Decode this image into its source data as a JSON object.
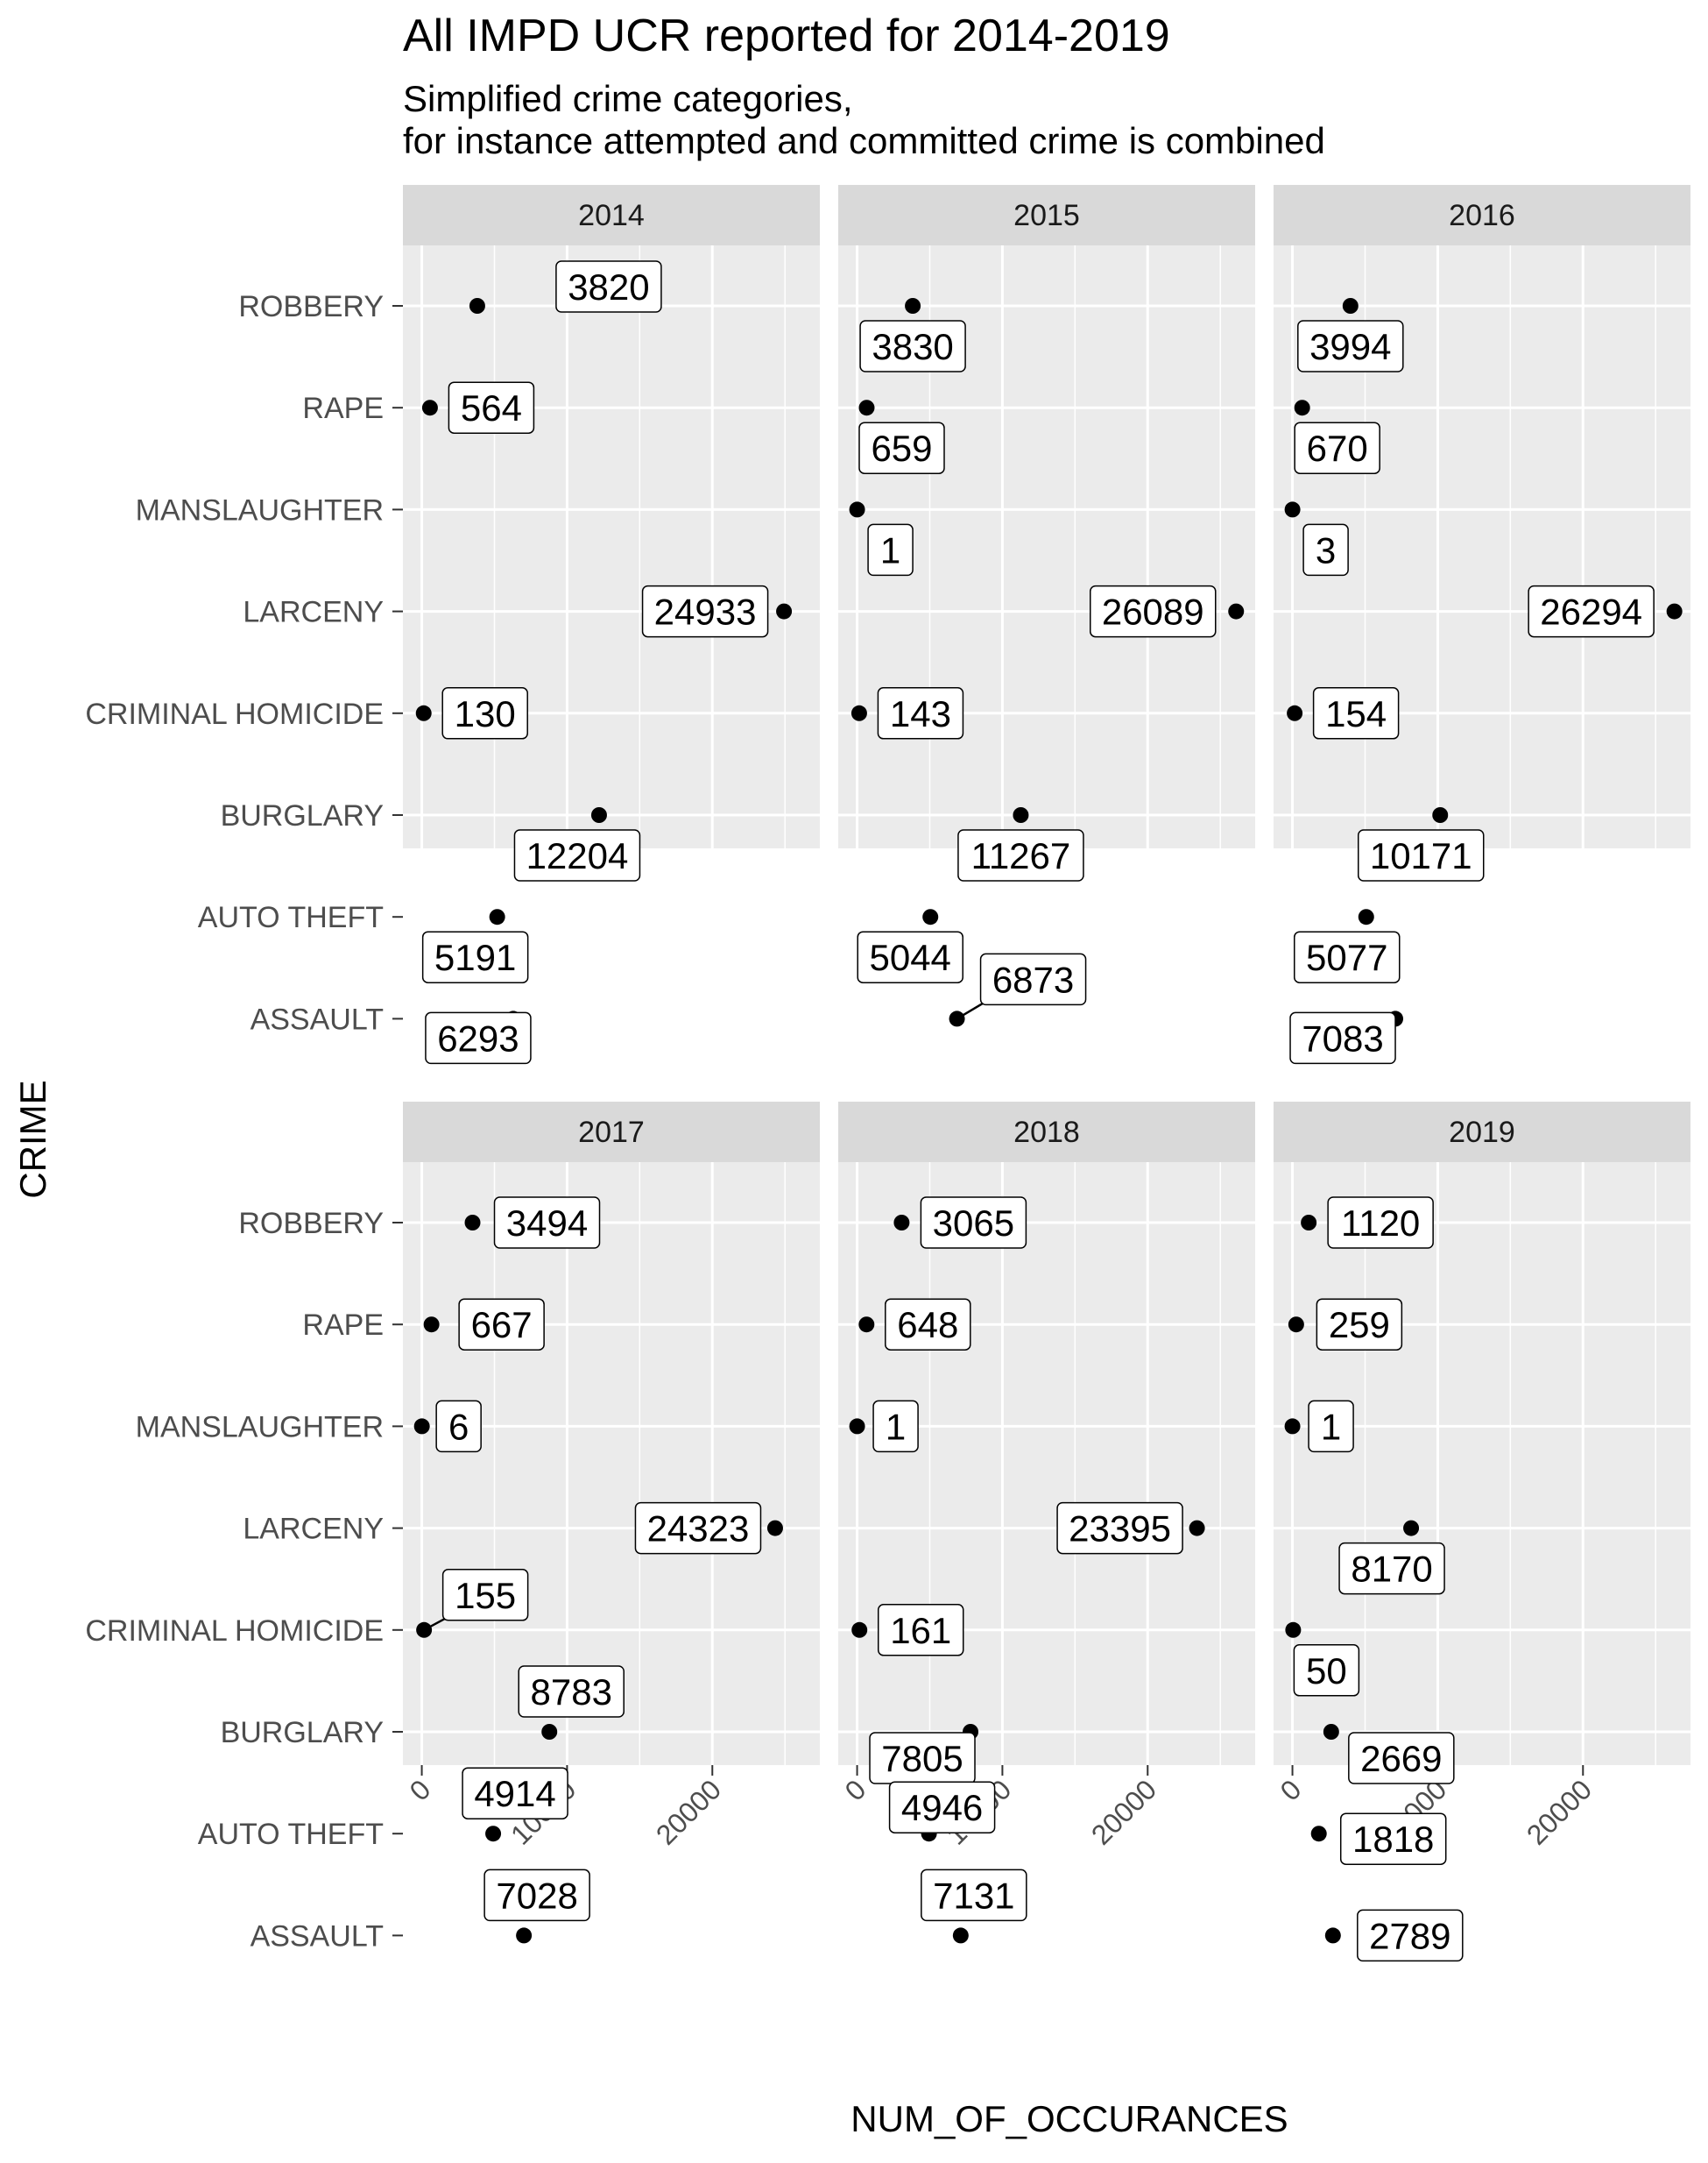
{
  "chart_data": {
    "type": "scatter",
    "title": "All IMPD UCR reported for 2014-2019",
    "subtitle_lines": [
      "Simplified crime categories,",
      "for instance attempted and committed crime is combined"
    ],
    "xlabel": "NUM_OF_OCCURANCES",
    "ylabel": "CRIME",
    "xlim": [
      -1300,
      27400
    ],
    "x_ticks": [
      0,
      10000,
      20000
    ],
    "x_tick_labels": [
      "0",
      "10000",
      "20000"
    ],
    "grid": true,
    "categories": [
      "ROBBERY",
      "RAPE",
      "MANSLAUGHTER",
      "LARCENY",
      "CRIMINAL HOMICIDE",
      "BURGLARY",
      "AUTO THEFT",
      "ASSAULT"
    ],
    "panels": [
      {
        "facet": "2014",
        "values": {
          "ROBBERY": 3820,
          "RAPE": 564,
          "LARCENY": 24933,
          "CRIMINAL HOMICIDE": 130,
          "BURGLARY": 12204,
          "AUTO THEFT": 5191,
          "ASSAULT": 6293
        }
      },
      {
        "facet": "2015",
        "values": {
          "ROBBERY": 3830,
          "RAPE": 659,
          "MANSLAUGHTER": 1,
          "LARCENY": 26089,
          "CRIMINAL HOMICIDE": 143,
          "BURGLARY": 11267,
          "AUTO THEFT": 5044,
          "ASSAULT": 6873
        }
      },
      {
        "facet": "2016",
        "values": {
          "ROBBERY": 3994,
          "RAPE": 670,
          "MANSLAUGHTER": 3,
          "LARCENY": 26294,
          "CRIMINAL HOMICIDE": 154,
          "BURGLARY": 10171,
          "AUTO THEFT": 5077,
          "ASSAULT": 7083
        }
      },
      {
        "facet": "2017",
        "values": {
          "ROBBERY": 3494,
          "RAPE": 667,
          "MANSLAUGHTER": 6,
          "LARCENY": 24323,
          "CRIMINAL HOMICIDE": 155,
          "BURGLARY": 8783,
          "AUTO THEFT": 4914,
          "ASSAULT": 7028
        }
      },
      {
        "facet": "2018",
        "values": {
          "ROBBERY": 3065,
          "RAPE": 648,
          "MANSLAUGHTER": 1,
          "LARCENY": 23395,
          "CRIMINAL HOMICIDE": 161,
          "BURGLARY": 7805,
          "AUTO THEFT": 4946,
          "ASSAULT": 7131
        }
      },
      {
        "facet": "2019",
        "values": {
          "ROBBERY": 1120,
          "RAPE": 259,
          "MANSLAUGHTER": 1,
          "LARCENY": 8170,
          "CRIMINAL HOMICIDE": 50,
          "BURGLARY": 2669,
          "AUTO THEFT": 1818,
          "ASSAULT": 2789
        }
      }
    ],
    "colors": {
      "panel_background": "#ebebeb",
      "strip_background": "#d9d9d9",
      "grid": "#ffffff",
      "point": "#000000",
      "text": "#000000",
      "axis_text": "#4d4d4d"
    }
  }
}
